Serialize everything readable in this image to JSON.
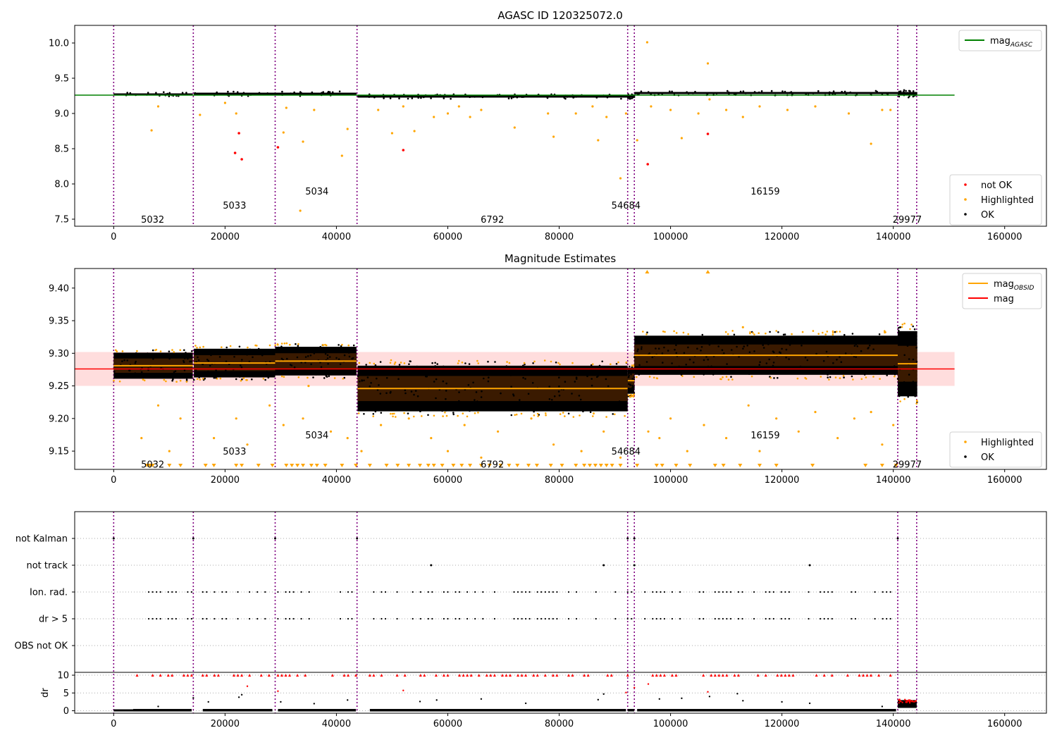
{
  "chart_data": [
    {
      "type": "scatter",
      "title": "AGASC ID 120325072.0",
      "xlim": [
        -7000,
        167500
      ],
      "ylim": [
        7.4,
        10.25
      ],
      "xticks": [
        0,
        20000,
        40000,
        60000,
        80000,
        100000,
        120000,
        140000,
        160000
      ],
      "xtick_labels": [
        "0",
        "20000",
        "40000",
        "60000",
        "80000",
        "100000",
        "120000",
        "140000",
        "160000"
      ],
      "yticks": [
        7.5,
        8.0,
        8.5,
        9.0,
        9.5,
        10.0
      ],
      "ytick_labels": [
        "7.5",
        "8.0",
        "8.5",
        "9.0",
        "9.5",
        "10.0"
      ],
      "legend_lines": [
        {
          "label": "mag",
          "sub": "AGASC",
          "color": "#008000"
        }
      ],
      "legend_points": [
        {
          "label": "not OK",
          "color": "#ff0000"
        },
        {
          "label": "Highlighted",
          "color": "#ffa500"
        },
        {
          "label": "OK",
          "color": "#000000"
        }
      ],
      "mag_agasc": {
        "value": 9.26,
        "x": [
          -7000,
          151000
        ]
      },
      "segments": [
        {
          "x0": 0,
          "x1": 14200,
          "y": 9.27,
          "spread": 0.03
        },
        {
          "x0": 14400,
          "x1": 29000,
          "y": 9.28,
          "spread": 0.03
        },
        {
          "x0": 29000,
          "x1": 43600,
          "y": 9.28,
          "spread": 0.03
        },
        {
          "x0": 43800,
          "x1": 92300,
          "y": 9.24,
          "spread": 0.03
        },
        {
          "x0": 92300,
          "x1": 93500,
          "y": 9.24,
          "spread": 0.03
        },
        {
          "x0": 93500,
          "x1": 140800,
          "y": 9.29,
          "spread": 0.03
        },
        {
          "x0": 140800,
          "x1": 144300,
          "y": 9.28,
          "spread": 0.05
        }
      ],
      "highlighted": [
        [
          6800,
          8.76
        ],
        [
          8000,
          9.1
        ],
        [
          15500,
          8.98
        ],
        [
          20000,
          9.15
        ],
        [
          22000,
          9.0
        ],
        [
          30500,
          8.73
        ],
        [
          31000,
          9.08
        ],
        [
          33500,
          7.62
        ],
        [
          34000,
          8.6
        ],
        [
          36000,
          9.05
        ],
        [
          41000,
          8.4
        ],
        [
          42000,
          8.78
        ],
        [
          47500,
          9.05
        ],
        [
          50000,
          8.72
        ],
        [
          52000,
          9.1
        ],
        [
          54000,
          8.75
        ],
        [
          57500,
          8.95
        ],
        [
          60000,
          9.0
        ],
        [
          62000,
          9.1
        ],
        [
          64000,
          8.95
        ],
        [
          66000,
          9.05
        ],
        [
          72000,
          8.8
        ],
        [
          78000,
          9.0
        ],
        [
          79000,
          8.67
        ],
        [
          83000,
          9.0
        ],
        [
          86000,
          9.1
        ],
        [
          87000,
          8.62
        ],
        [
          88500,
          8.95
        ],
        [
          91000,
          8.08
        ],
        [
          92000,
          9.0
        ],
        [
          94000,
          8.62
        ],
        [
          95800,
          10.01
        ],
        [
          96500,
          9.1
        ],
        [
          100000,
          9.05
        ],
        [
          102000,
          8.65
        ],
        [
          105000,
          9.0
        ],
        [
          106700,
          9.71
        ],
        [
          107000,
          9.2
        ],
        [
          110000,
          9.05
        ],
        [
          113000,
          8.95
        ],
        [
          116000,
          9.1
        ],
        [
          121000,
          9.05
        ],
        [
          126000,
          9.1
        ],
        [
          132000,
          9.0
        ],
        [
          136000,
          8.57
        ],
        [
          138000,
          9.05
        ],
        [
          139500,
          9.05
        ]
      ],
      "not_ok": [
        [
          22500,
          8.72
        ],
        [
          23000,
          8.35
        ],
        [
          21800,
          8.44
        ],
        [
          29500,
          8.52
        ],
        [
          52000,
          8.48
        ],
        [
          95900,
          8.28
        ],
        [
          106700,
          8.71
        ]
      ],
      "obsid_labels": [
        {
          "x": 7000,
          "y": 7.5,
          "text": "5032"
        },
        {
          "x": 21700,
          "y": 7.7,
          "text": "5033"
        },
        {
          "x": 36500,
          "y": 7.9,
          "text": "5034"
        },
        {
          "x": 68000,
          "y": 7.5,
          "text": "6792"
        },
        {
          "x": 92000,
          "y": 7.7,
          "text": "54684"
        },
        {
          "x": 117000,
          "y": 7.9,
          "text": "16159"
        },
        {
          "x": 142500,
          "y": 7.5,
          "text": "29977"
        }
      ],
      "vlines": [
        0,
        14300,
        29000,
        43700,
        92300,
        93500,
        140800,
        144200
      ]
    },
    {
      "type": "scatter",
      "title": "Magnitude Estimates",
      "xlim": [
        -7000,
        167500
      ],
      "ylim": [
        9.122,
        9.43
      ],
      "xticks": [
        0,
        20000,
        40000,
        60000,
        80000,
        100000,
        120000,
        140000,
        160000
      ],
      "xtick_labels": [
        "0",
        "20000",
        "40000",
        "60000",
        "80000",
        "100000",
        "120000",
        "140000",
        "160000"
      ],
      "yticks": [
        9.15,
        9.2,
        9.25,
        9.3,
        9.35,
        9.4
      ],
      "ytick_labels": [
        "9.15",
        "9.20",
        "9.25",
        "9.30",
        "9.35",
        "9.40"
      ],
      "legend_lines": [
        {
          "label": "mag",
          "sub": "OBSID",
          "color": "#ffa500"
        },
        {
          "label": "mag",
          "sub": "",
          "color": "#ff0000"
        }
      ],
      "legend_points": [
        {
          "label": "Highlighted",
          "color": "#ffa500"
        },
        {
          "label": "OK",
          "color": "#000000"
        }
      ],
      "mag": {
        "value": 9.276,
        "band": [
          9.25,
          9.302
        ],
        "x": [
          -7000,
          151000
        ]
      },
      "segments": [
        {
          "x0": 0,
          "x1": 14200,
          "y": 9.281,
          "spread": 0.02
        },
        {
          "x0": 14400,
          "x1": 29000,
          "y": 9.285,
          "spread": 0.022
        },
        {
          "x0": 29000,
          "x1": 43600,
          "y": 9.288,
          "spread": 0.022
        },
        {
          "x0": 43800,
          "x1": 92300,
          "y": 9.246,
          "spread": 0.035
        },
        {
          "x0": 92300,
          "x1": 93500,
          "y": 9.258,
          "spread": 0.02
        },
        {
          "x0": 93500,
          "x1": 140800,
          "y": 9.297,
          "spread": 0.03
        },
        {
          "x0": 140800,
          "x1": 144300,
          "y": 9.284,
          "spread": 0.05
        }
      ],
      "highlighted": [
        [
          5000,
          9.17
        ],
        [
          8000,
          9.22
        ],
        [
          10000,
          9.15
        ],
        [
          12000,
          9.2
        ],
        [
          18000,
          9.17
        ],
        [
          22000,
          9.2
        ],
        [
          24000,
          9.16
        ],
        [
          28000,
          9.22
        ],
        [
          30500,
          9.19
        ],
        [
          34000,
          9.2
        ],
        [
          35000,
          9.25
        ],
        [
          39000,
          9.18
        ],
        [
          42000,
          9.17
        ],
        [
          44500,
          9.15
        ],
        [
          48000,
          9.19
        ],
        [
          53000,
          9.2
        ],
        [
          57000,
          9.17
        ],
        [
          60000,
          9.15
        ],
        [
          63000,
          9.19
        ],
        [
          66000,
          9.14
        ],
        [
          69000,
          9.18
        ],
        [
          75000,
          9.2
        ],
        [
          79000,
          9.16
        ],
        [
          84000,
          9.15
        ],
        [
          88000,
          9.18
        ],
        [
          91000,
          9.14
        ],
        [
          96000,
          9.18
        ],
        [
          98000,
          9.17
        ],
        [
          100000,
          9.2
        ],
        [
          103000,
          9.15
        ],
        [
          106000,
          9.19
        ],
        [
          110000,
          9.17
        ],
        [
          113000,
          9.34
        ],
        [
          114000,
          9.22
        ],
        [
          116000,
          9.15
        ],
        [
          119000,
          9.2
        ],
        [
          123000,
          9.18
        ],
        [
          126000,
          9.21
        ],
        [
          130000,
          9.17
        ],
        [
          133000,
          9.2
        ],
        [
          136000,
          9.21
        ],
        [
          138000,
          9.16
        ],
        [
          140000,
          9.19
        ]
      ],
      "triangles_bottom": [
        6000,
        6500,
        7000,
        10000,
        12000,
        16500,
        18000,
        22000,
        23000,
        26000,
        28500,
        31000,
        32000,
        33000,
        34000,
        35500,
        36500,
        38000,
        41000,
        43500,
        46000,
        49000,
        51000,
        53000,
        55000,
        56500,
        57500,
        59000,
        61000,
        62500,
        64000,
        66000,
        67500,
        69500,
        71000,
        72500,
        74500,
        76000,
        78500,
        80500,
        83000,
        84500,
        85500,
        86500,
        87500,
        88500,
        89500,
        91000,
        94000,
        97500,
        98500,
        101000,
        103500,
        108000,
        109500,
        112500,
        116000,
        119000,
        125500,
        135000,
        138000,
        140500
      ],
      "triangles_top": [
        95800,
        106700
      ],
      "obsid_labels": [
        {
          "x": 7000,
          "y": 9.13,
          "text": "5032"
        },
        {
          "x": 21700,
          "y": 9.15,
          "text": "5033"
        },
        {
          "x": 36500,
          "y": 9.175,
          "text": "5034"
        },
        {
          "x": 68000,
          "y": 9.13,
          "text": "6792"
        },
        {
          "x": 92000,
          "y": 9.15,
          "text": "54684"
        },
        {
          "x": 117000,
          "y": 9.175,
          "text": "16159"
        },
        {
          "x": 142500,
          "y": 9.13,
          "text": "29977"
        }
      ],
      "vlines": [
        0,
        14300,
        29000,
        43700,
        92300,
        93500,
        140800,
        144200
      ]
    },
    {
      "type": "scatter",
      "title": "",
      "xlim": [
        -7000,
        167500
      ],
      "flag_labels": [
        "not Kalman",
        "not track",
        "Ion. rad.",
        "dr > 5",
        "OBS not OK"
      ],
      "not_kalman": [
        0,
        14300,
        29000,
        43700,
        92300,
        93500,
        140800
      ],
      "not_track": [
        57000,
        88000,
        93500,
        125000
      ],
      "ion_rad_spacing": 700,
      "dr_ylabel": "dr",
      "dr_ylim": [
        -0.7,
        10.8
      ],
      "dr_yticks": [
        0,
        5,
        10
      ],
      "dr_ytick_labels": [
        "0",
        "5",
        "10"
      ],
      "dr_outliers": [
        [
          8000,
          1.2
        ],
        [
          14300,
          3.6
        ],
        [
          17000,
          2.5
        ],
        [
          22500,
          3.8
        ],
        [
          23000,
          4.5
        ],
        [
          24000,
          6.9
        ],
        [
          29500,
          5.5
        ],
        [
          30000,
          2.5
        ],
        [
          36000,
          2.0
        ],
        [
          42000,
          3.0
        ],
        [
          52000,
          5.7
        ],
        [
          55000,
          2.6
        ],
        [
          58000,
          3.0
        ],
        [
          66000,
          3.3
        ],
        [
          74000,
          2.1
        ],
        [
          87000,
          3.1
        ],
        [
          88000,
          4.7
        ],
        [
          92000,
          5.1
        ],
        [
          93500,
          6.5
        ],
        [
          96000,
          7.5
        ],
        [
          98000,
          3.3
        ],
        [
          102000,
          3.5
        ],
        [
          106700,
          5.3
        ],
        [
          107000,
          4.0
        ],
        [
          112000,
          4.8
        ],
        [
          113000,
          2.8
        ],
        [
          120000,
          2.5
        ],
        [
          125000,
          2.1
        ],
        [
          138000,
          1.2
        ]
      ],
      "xticks": [
        0,
        20000,
        40000,
        60000,
        80000,
        100000,
        120000,
        140000,
        160000
      ],
      "xtick_labels": [
        "0",
        "20000",
        "40000",
        "60000",
        "80000",
        "100000",
        "120000",
        "140000",
        "160000"
      ],
      "vlines": [
        0,
        14300,
        29000,
        43700,
        92300,
        93500,
        140800,
        144200
      ]
    }
  ]
}
